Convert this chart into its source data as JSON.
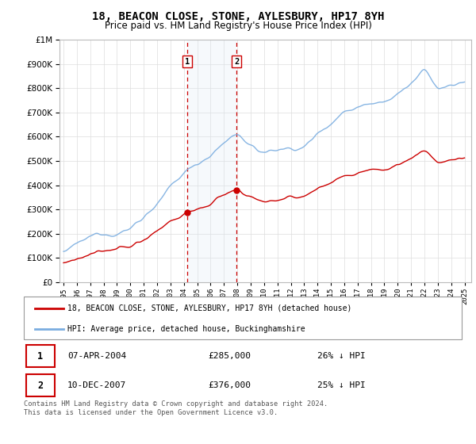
{
  "title": "18, BEACON CLOSE, STONE, AYLESBURY, HP17 8YH",
  "subtitle": "Price paid vs. HM Land Registry's House Price Index (HPI)",
  "legend_label_red": "18, BEACON CLOSE, STONE, AYLESBURY, HP17 8YH (detached house)",
  "legend_label_blue": "HPI: Average price, detached house, Buckinghamshire",
  "marker1_date": "07-APR-2004",
  "marker1_price": 285000,
  "marker1_pct": "26% ↓ HPI",
  "marker2_date": "10-DEC-2007",
  "marker2_price": 376000,
  "marker2_pct": "25% ↓ HPI",
  "footer": "Contains HM Land Registry data © Crown copyright and database right 2024.\nThis data is licensed under the Open Government Licence v3.0.",
  "ylim_min": 0,
  "ylim_max": 1000000,
  "background_color": "#ffffff",
  "grid_color": "#dddddd",
  "red_color": "#cc0000",
  "blue_color": "#7aade0",
  "shade_color": "#dce9f5",
  "dashed_color": "#cc0000",
  "title_fontsize": 10,
  "subtitle_fontsize": 8.5
}
